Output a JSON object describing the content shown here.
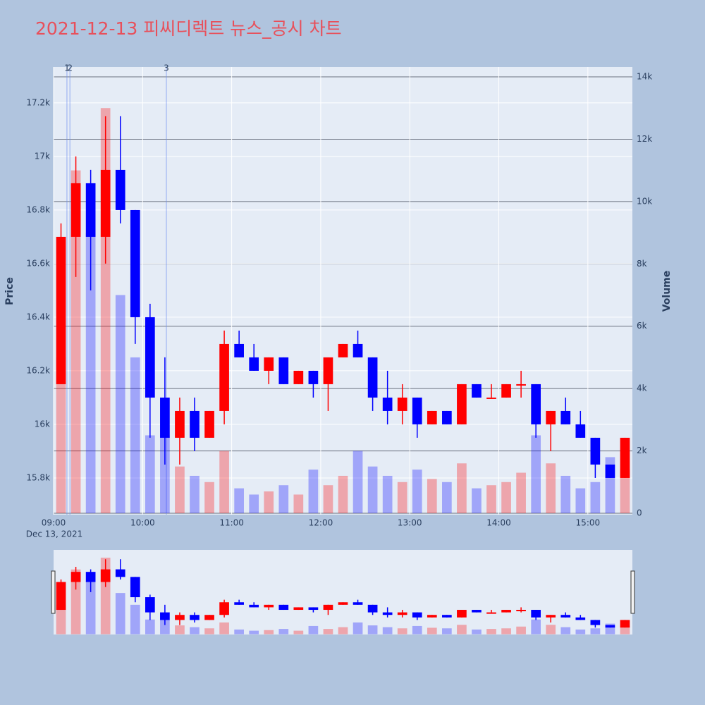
{
  "chart_data": {
    "type": "candlestick",
    "title": "2021-12-13 피씨디렉트 뉴스_공시 차트",
    "y_title": "Price",
    "y2_title": "Volume",
    "x": [
      "09:00",
      "09:10",
      "09:20",
      "09:30",
      "09:40",
      "09:50",
      "10:00",
      "10:10",
      "10:20",
      "10:30",
      "10:40",
      "10:50",
      "11:00",
      "11:10",
      "11:20",
      "11:30",
      "11:40",
      "11:50",
      "12:00",
      "12:10",
      "12:20",
      "12:30",
      "12:40",
      "12:50",
      "13:00",
      "13:10",
      "13:20",
      "13:30",
      "13:40",
      "13:50",
      "14:00",
      "14:10",
      "14:20",
      "14:30",
      "14:40",
      "14:50",
      "15:00",
      "15:10",
      "15:20"
    ],
    "open": [
      16150,
      16700,
      16900,
      16700,
      16950,
      16800,
      16400,
      16100,
      15950,
      16050,
      15950,
      16050,
      16300,
      16250,
      16200,
      16250,
      16150,
      16200,
      16150,
      16250,
      16300,
      16250,
      16100,
      16050,
      16100,
      16000,
      16050,
      16000,
      16150,
      16100,
      16100,
      16150,
      16150,
      16000,
      16050,
      16000,
      15950,
      15850,
      15800
    ],
    "high": [
      16750,
      17000,
      16950,
      17150,
      17150,
      16800,
      16450,
      16250,
      16100,
      16100,
      16050,
      16350,
      16350,
      16300,
      16250,
      16250,
      16200,
      16200,
      16250,
      16300,
      16350,
      16250,
      16200,
      16150,
      16100,
      16050,
      16050,
      16150,
      16150,
      16150,
      16150,
      16200,
      16150,
      16050,
      16100,
      16050,
      15950,
      15850,
      15950
    ],
    "low": [
      16150,
      16550,
      16500,
      16600,
      16750,
      16300,
      15950,
      15850,
      15850,
      15900,
      15950,
      16000,
      16250,
      16200,
      16150,
      16150,
      16150,
      16100,
      16050,
      16250,
      16250,
      16050,
      16000,
      16000,
      15950,
      16000,
      16000,
      16000,
      16100,
      16100,
      16100,
      16100,
      15950,
      15900,
      16000,
      15950,
      15800,
      15800,
      15800
    ],
    "close": [
      16700,
      16900,
      16700,
      16950,
      16800,
      16400,
      16100,
      15950,
      16050,
      15950,
      16050,
      16300,
      16250,
      16200,
      16250,
      16150,
      16200,
      16150,
      16250,
      16300,
      16250,
      16100,
      16050,
      16100,
      16000,
      16050,
      16000,
      16150,
      16100,
      16100,
      16150,
      16150,
      16000,
      16050,
      16000,
      15950,
      15850,
      15800,
      15950
    ],
    "volume": [
      5000,
      11000,
      9000,
      13000,
      7000,
      5000,
      2500,
      2500,
      1500,
      1200,
      1000,
      2000,
      800,
      600,
      700,
      900,
      600,
      1400,
      900,
      1200,
      2000,
      1500,
      1200,
      1000,
      1400,
      1100,
      1000,
      1600,
      800,
      900,
      1000,
      1300,
      2500,
      1600,
      1200,
      800,
      1000,
      1800,
      1400
    ],
    "increasing_color": "#ff0000",
    "decreasing_color": "#0000ff",
    "xlim": [
      "09:00",
      "15:30"
    ],
    "xticks": [
      "09:00",
      "10:00",
      "11:00",
      "12:00",
      "13:00",
      "14:00",
      "15:00"
    ],
    "x_date_label": "Dec 13, 2021",
    "ylim": [
      15663,
      17334
    ],
    "yticks": [
      {
        "value": 15800,
        "label": "15.8k"
      },
      {
        "value": 16000,
        "label": "16k"
      },
      {
        "value": 16200,
        "label": "16.2k"
      },
      {
        "value": 16400,
        "label": "16.4k"
      },
      {
        "value": 16600,
        "label": "16.6k"
      },
      {
        "value": 16800,
        "label": "16.8k"
      },
      {
        "value": 17000,
        "label": "17k"
      },
      {
        "value": 17200,
        "label": "17.2k"
      }
    ],
    "y2lim": [
      -45,
      14317
    ],
    "y2ticks": [
      0,
      {
        "value": 2000,
        "label": "2k"
      },
      {
        "value": 4000,
        "label": "4k"
      },
      {
        "value": 6000,
        "label": "6k"
      },
      {
        "value": 8000,
        "label": "8k"
      },
      {
        "value": 10000,
        "label": "10k"
      },
      {
        "value": 12000,
        "label": "12k"
      },
      {
        "value": 14000,
        "label": "14k"
      }
    ],
    "grid": true,
    "news": [
      {
        "x": "09:09",
        "label": "1"
      },
      {
        "x": "09:11",
        "label": "2"
      },
      {
        "x": "10:16",
        "label": "3"
      }
    ]
  }
}
